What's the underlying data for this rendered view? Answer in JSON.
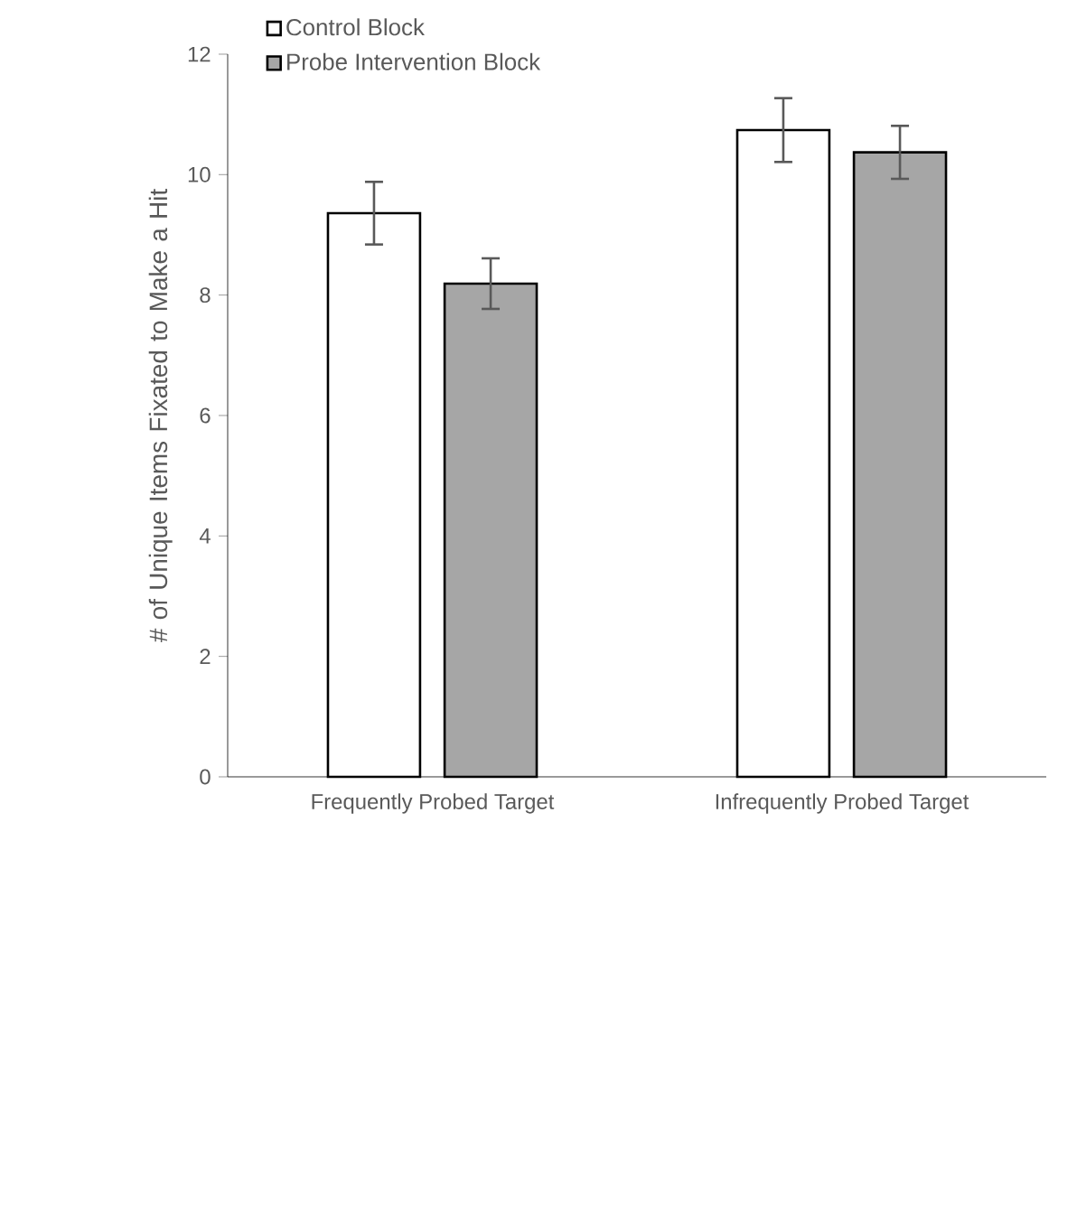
{
  "chart_data": {
    "type": "bar",
    "categories": [
      "Frequently Probed Target",
      "Infrequently Probed Target"
    ],
    "ylabel": "# of Unique Items Fixated to Make a Hit",
    "ylim": [
      0,
      12
    ],
    "yticks": [
      0,
      2,
      4,
      6,
      8,
      10,
      12
    ],
    "series": [
      {
        "name": "Control Block",
        "color": "#ffffff",
        "values": [
          9.36,
          10.74
        ],
        "errors": [
          0.52,
          0.53
        ]
      },
      {
        "name": "Probe Intervention Block",
        "color": "#a6a6a6",
        "values": [
          8.19,
          10.37
        ],
        "errors": [
          0.42,
          0.44
        ]
      }
    ],
    "legend": "top left",
    "grid": false
  }
}
